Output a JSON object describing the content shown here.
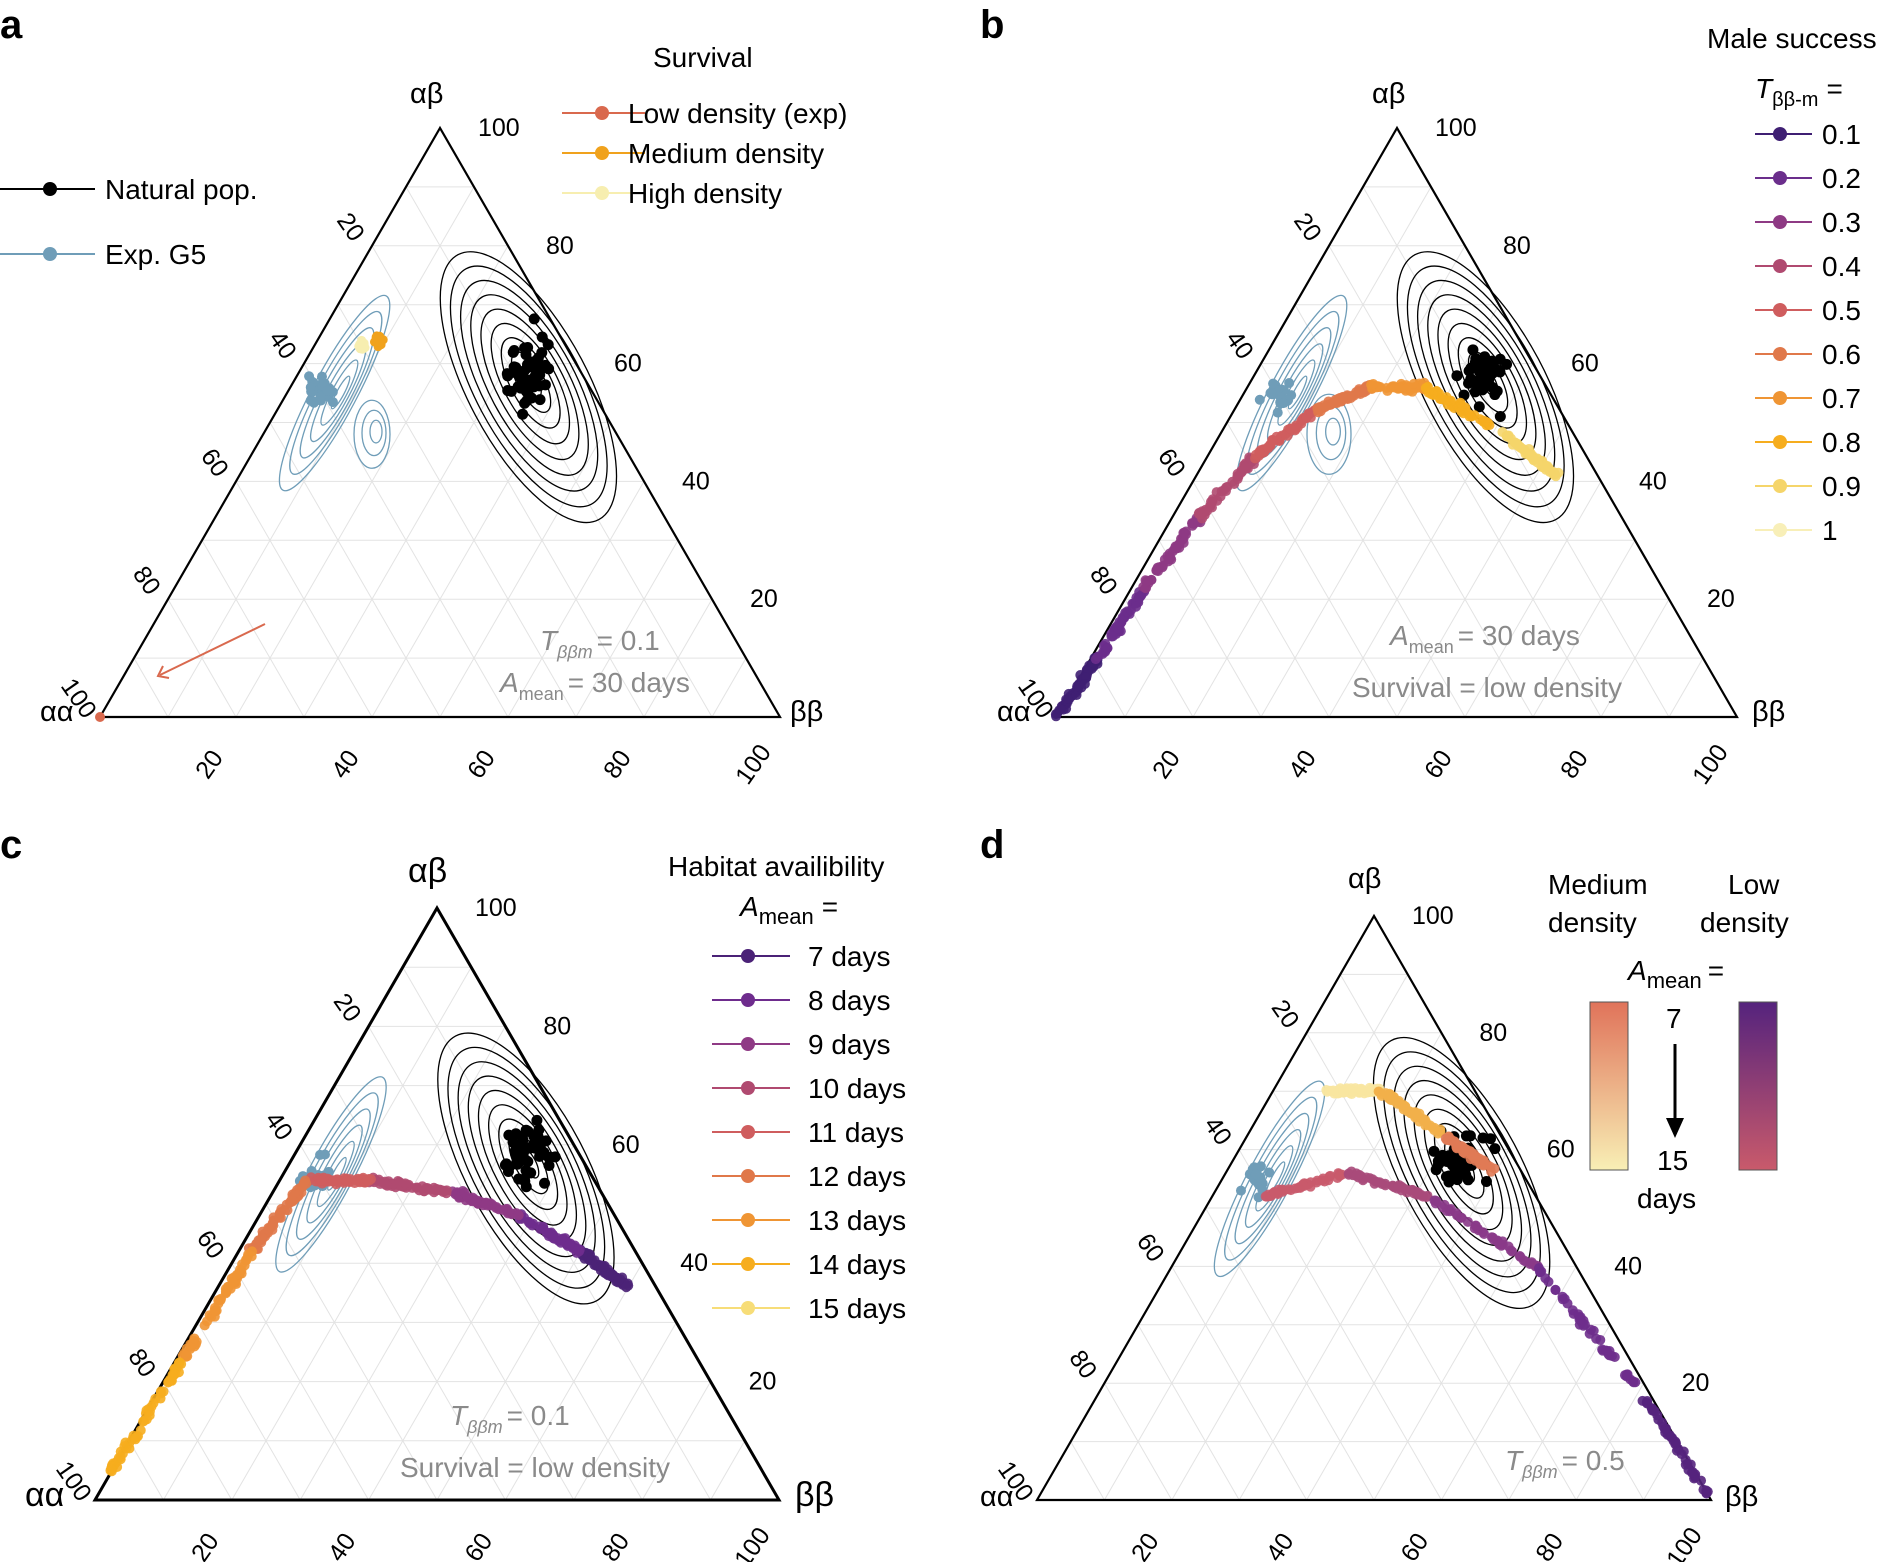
{
  "figure": {
    "panel_letters": [
      "a",
      "b",
      "c",
      "d"
    ]
  },
  "chart_data": [
    {
      "type": "scatter",
      "subtype": "ternary",
      "panel": "a",
      "vertices": {
        "top": "αβ",
        "left": "αα",
        "right": "ββ"
      },
      "ticks": [
        "20",
        "40",
        "60",
        "80",
        "100"
      ],
      "legend_left": [
        {
          "label": "Natural pop.",
          "color": "#000000"
        },
        {
          "label": "Exp. G5",
          "color": "#6f9db8"
        }
      ],
      "legend_title": "Survival",
      "legend_right": [
        {
          "label": "Low density (exp)",
          "color": "#d9694e"
        },
        {
          "label": "Medium density",
          "color": "#f0a21d"
        },
        {
          "label": "High density",
          "color": "#f7eeb0"
        }
      ],
      "annotation": {
        "t_symbol": "T",
        "t_sub": "ββm",
        "t_val": "= 0.1",
        "a_symbol": "A",
        "a_sub": "mean",
        "a_val": "= 30 days"
      },
      "series": [
        {
          "name": "Natural pop.",
          "color": "#000000",
          "clusters": [
            {
              "ab": 58,
              "aa": 8,
              "bb": 34,
              "spread": 10,
              "n": 60
            }
          ]
        },
        {
          "name": "Exp. G5",
          "color": "#6f9db8",
          "clusters": [
            {
              "ab": 55,
              "aa": 40,
              "bb": 5,
              "spread": 6,
              "n": 22
            }
          ]
        },
        {
          "name": "Low density (exp)",
          "color": "#d9694e",
          "points": [
            [
              0,
              100,
              0
            ]
          ]
        },
        {
          "name": "Medium density",
          "color": "#f0a21d",
          "clusters": [
            {
              "ab": 64,
              "aa": 27,
              "bb": 9,
              "spread": 1.5,
              "n": 40
            }
          ]
        },
        {
          "name": "High density",
          "color": "#f7eeb0",
          "clusters": [
            {
              "ab": 63,
              "aa": 30,
              "bb": 7,
              "spread": 1.5,
              "n": 25
            }
          ]
        }
      ]
    },
    {
      "type": "scatter",
      "subtype": "ternary",
      "panel": "b",
      "vertices": {
        "top": "αβ",
        "left": "αα",
        "right": "ββ"
      },
      "ticks": [
        "20",
        "40",
        "60",
        "80",
        "100"
      ],
      "legend_title": "Male success",
      "legend_param": {
        "symbol": "T",
        "sub": "ββ-m",
        "eq": "="
      },
      "legend": [
        {
          "label": "0.1",
          "color": "#3f1f73"
        },
        {
          "label": "0.2",
          "color": "#6b2e8c"
        },
        {
          "label": "0.3",
          "color": "#8e3a84"
        },
        {
          "label": "0.4",
          "color": "#b04a70"
        },
        {
          "label": "0.5",
          "color": "#cf5d5e"
        },
        {
          "label": "0.6",
          "color": "#e0784a"
        },
        {
          "label": "0.7",
          "color": "#ef9534"
        },
        {
          "label": "0.8",
          "color": "#f6ad1e"
        },
        {
          "label": "0.9",
          "color": "#f5d56a"
        },
        {
          "label": "1",
          "color": "#f8efb8"
        }
      ],
      "annotation": {
        "a_symbol": "A",
        "a_sub": "mean",
        "a_val": "= 30 days",
        "survival": "Survival = low density"
      },
      "trajectory": [
        {
          "t": "0.1",
          "ab": 0,
          "aa": 100,
          "bb": 0
        },
        {
          "t": "0.2",
          "ab": 10,
          "aa": 89,
          "bb": 1
        },
        {
          "t": "0.3",
          "ab": 22,
          "aa": 76,
          "bb": 2
        },
        {
          "t": "0.4",
          "ab": 34,
          "aa": 62,
          "bb": 4
        },
        {
          "t": "0.5",
          "ab": 44,
          "aa": 49,
          "bb": 7
        },
        {
          "t": "0.6",
          "ab": 52,
          "aa": 36,
          "bb": 12
        },
        {
          "t": "0.7",
          "ab": 56,
          "aa": 26,
          "bb": 18
        },
        {
          "t": "0.8",
          "ab": 56,
          "aa": 18,
          "bb": 26
        },
        {
          "t": "0.9",
          "ab": 49,
          "aa": 11,
          "bb": 40
        },
        {
          "t": "1",
          "ab": 41,
          "aa": 6,
          "bb": 53
        }
      ]
    },
    {
      "type": "scatter",
      "subtype": "ternary",
      "panel": "c",
      "vertices": {
        "top": "αβ",
        "left": "αα",
        "right": "ββ"
      },
      "ticks": [
        "20",
        "40",
        "60",
        "80",
        "100"
      ],
      "legend_title": "Habitat availibility",
      "legend_param": {
        "symbol": "A",
        "sub": "mean",
        "eq": "="
      },
      "legend": [
        {
          "label": "7 days",
          "color": "#4b2277"
        },
        {
          "label": "8 days",
          "color": "#6e2c8d"
        },
        {
          "label": "9 days",
          "color": "#8f3a85"
        },
        {
          "label": "10 days",
          "color": "#b04a70"
        },
        {
          "label": "11 days",
          "color": "#cf5d5e"
        },
        {
          "label": "12 days",
          "color": "#e0784a"
        },
        {
          "label": "13 days",
          "color": "#ef9534"
        },
        {
          "label": "14 days",
          "color": "#f6ad1e"
        },
        {
          "label": "15 days",
          "color": "#f7dd78"
        }
      ],
      "annotation": {
        "t_symbol": "T",
        "t_sub": "ββm",
        "t_val": "= 0.1",
        "survival": "Survival = low density"
      },
      "trajectory": [
        {
          "days": "7 days",
          "ab": 36,
          "aa": 4,
          "bb": 60
        },
        {
          "days": "8 days",
          "ab": 42,
          "aa": 8,
          "bb": 50
        },
        {
          "days": "9 days",
          "ab": 48,
          "aa": 14,
          "bb": 38
        },
        {
          "days": "10 days",
          "ab": 52,
          "aa": 22,
          "bb": 26
        },
        {
          "days": "11 days",
          "ab": 54,
          "aa": 33,
          "bb": 13
        },
        {
          "days": "12 days",
          "ab": 54,
          "aa": 42,
          "bb": 4
        },
        {
          "days": "13 days",
          "ab": 42,
          "aa": 56,
          "bb": 2
        },
        {
          "days": "14 days",
          "ab": 24,
          "aa": 75,
          "bb": 1
        },
        {
          "days": "15 days",
          "ab": 5,
          "aa": 95,
          "bb": 0
        }
      ]
    },
    {
      "type": "scatter",
      "subtype": "ternary",
      "panel": "d",
      "vertices": {
        "top": "αβ",
        "left": "αα",
        "right": "ββ"
      },
      "ticks": [
        "20",
        "40",
        "60",
        "80",
        "100"
      ],
      "legend_col1": "Medium density",
      "legend_col2": "Low density",
      "legend_param": {
        "symbol": "A",
        "sub": "mean",
        "eq": "="
      },
      "legend_range": {
        "from": "7",
        "to": "15",
        "unit": "days"
      },
      "gradients": {
        "medium": [
          "#e0735a",
          "#f8efb5"
        ],
        "low": [
          "#55237d",
          "#c95a6b"
        ]
      },
      "annotation": {
        "t_symbol": "T",
        "t_sub": "ββm",
        "t_val": "= 0.5"
      },
      "medium_trajectory": [
        {
          "ab": 70,
          "aa": 22,
          "bb": 8
        },
        {
          "ab": 70,
          "aa": 14,
          "bb": 16
        },
        {
          "ab": 62,
          "aa": 8,
          "bb": 30
        },
        {
          "ab": 56,
          "aa": 4,
          "bb": 40
        }
      ],
      "low_trajectory": [
        {
          "ab": 52,
          "aa": 40,
          "bb": 8
        },
        {
          "ab": 56,
          "aa": 26,
          "bb": 18
        },
        {
          "ab": 52,
          "aa": 16,
          "bb": 32
        },
        {
          "ab": 40,
          "aa": 6,
          "bb": 54
        },
        {
          "ab": 18,
          "aa": 1,
          "bb": 81
        },
        {
          "ab": 0,
          "aa": 0,
          "bb": 100
        }
      ]
    }
  ]
}
